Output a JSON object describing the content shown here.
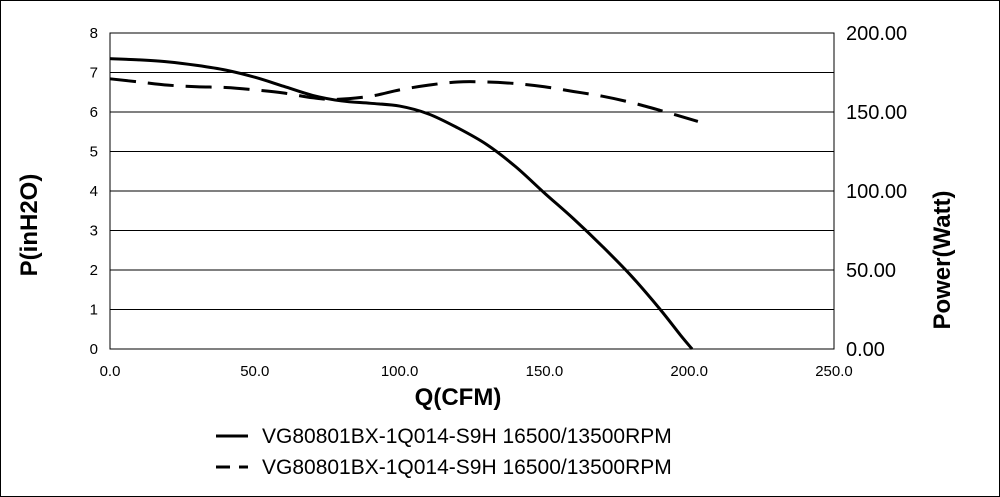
{
  "chart_data": {
    "type": "line",
    "xlabel": "Q(CFM)",
    "ylabel": "P(inH2O)",
    "y2label": "Power(Watt)",
    "xlim": [
      0,
      250
    ],
    "ylim": [
      0,
      8
    ],
    "y2lim": [
      0,
      200
    ],
    "x_ticks": [
      "0.0",
      "50.0",
      "100.0",
      "150.0",
      "200.0",
      "250.0"
    ],
    "y_ticks": [
      "0",
      "1",
      "2",
      "3",
      "4",
      "5",
      "6",
      "7",
      "8"
    ],
    "y2_ticks": [
      "0.00",
      "50.00",
      "100.00",
      "150.00",
      "200.00"
    ],
    "grid": "horizontal",
    "legend_position": "bottom",
    "series": [
      {
        "name": "VG80801BX-1Q014-S9H 16500/13500RPM",
        "axis": "left",
        "style": "solid",
        "x": [
          0,
          10,
          20,
          30,
          40,
          50,
          60,
          70,
          80,
          90,
          100,
          110,
          120,
          130,
          140,
          150,
          160,
          170,
          180,
          190,
          197,
          201
        ],
        "y": [
          7.35,
          7.32,
          7.27,
          7.18,
          7.06,
          6.88,
          6.65,
          6.42,
          6.28,
          6.22,
          6.15,
          5.95,
          5.6,
          5.18,
          4.62,
          3.95,
          3.3,
          2.6,
          1.85,
          1.0,
          0.35,
          0.0
        ]
      },
      {
        "name": "VG80801BX-1Q014-S9H 16500/13500RPM",
        "axis": "right",
        "style": "dashed",
        "x": [
          0,
          10,
          20,
          30,
          40,
          50,
          60,
          70,
          78,
          90,
          100,
          110,
          120,
          130,
          140,
          150,
          160,
          170,
          180,
          190,
          203
        ],
        "y": [
          171,
          169,
          167,
          166,
          165.5,
          164,
          162,
          159,
          158,
          160,
          164,
          167,
          169,
          169,
          168,
          166,
          163,
          160,
          156,
          151,
          144
        ]
      }
    ]
  }
}
